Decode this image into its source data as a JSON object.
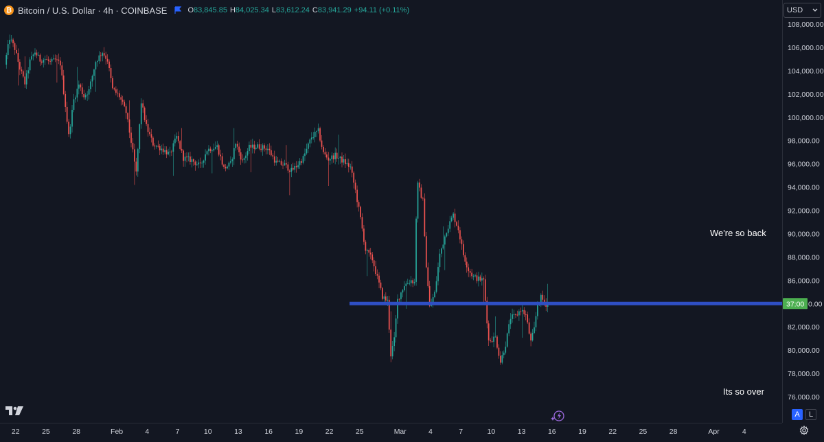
{
  "header": {
    "symbol_title": "Bitcoin / U.S. Dollar · 4h · COINBASE",
    "logo_letter": "₿",
    "ohlc": {
      "o_label": "O",
      "o_value": "83,845.85",
      "h_label": "H",
      "h_value": "84,025.34",
      "l_label": "L",
      "l_value": "83,612.24",
      "c_label": "C",
      "c_value": "83,941.29",
      "change": "+94.11 (+0.11%)"
    }
  },
  "currency": {
    "label": "USD"
  },
  "buttons": {
    "auto_label": "A",
    "log_label": "L"
  },
  "annotations": {
    "top_text": "We're so back",
    "bottom_text": "Its so over"
  },
  "price_badge": {
    "text": "37:00",
    "price": 84000
  },
  "colors": {
    "background": "#131722",
    "up": "#26a69a",
    "down": "#ef5350",
    "hline": "#2f4fc4",
    "badge": "#4caf50",
    "axis_text": "#d1d4dc"
  },
  "chart_data": {
    "type": "candlestick",
    "title": "Bitcoin / U.S. Dollar · 4h · COINBASE",
    "ylim": [
      74500,
      109500
    ],
    "y_ticks": [
      76000,
      78000,
      80000,
      82000,
      84000,
      86000,
      88000,
      90000,
      92000,
      94000,
      96000,
      98000,
      100000,
      102000,
      104000,
      106000,
      108000
    ],
    "y_tick_labels": [
      "76,000.00",
      "78,000.00",
      "80,000.00",
      "82,000.00",
      "84,000.00",
      "86,000.00",
      "88,000.00",
      "90,000.00",
      "92,000.00",
      "94,000.00",
      "96,000.00",
      "98,000.00",
      "100,000.00",
      "102,000.00",
      "104,000.00",
      "106,000.00",
      "108,000.00"
    ],
    "x_range": [
      "2025-01-21",
      "2025-04-07"
    ],
    "x_ticks": [
      {
        "date": "2025-01-22",
        "label": "22"
      },
      {
        "date": "2025-01-25",
        "label": "25"
      },
      {
        "date": "2025-01-28",
        "label": "28"
      },
      {
        "date": "2025-02-01",
        "label": "Feb"
      },
      {
        "date": "2025-02-04",
        "label": "4"
      },
      {
        "date": "2025-02-07",
        "label": "7"
      },
      {
        "date": "2025-02-10",
        "label": "10"
      },
      {
        "date": "2025-02-13",
        "label": "13"
      },
      {
        "date": "2025-02-16",
        "label": "16"
      },
      {
        "date": "2025-02-19",
        "label": "19"
      },
      {
        "date": "2025-02-22",
        "label": "22"
      },
      {
        "date": "2025-02-25",
        "label": "25"
      },
      {
        "date": "2025-03-01",
        "label": "Mar"
      },
      {
        "date": "2025-03-04",
        "label": "4"
      },
      {
        "date": "2025-03-07",
        "label": "7"
      },
      {
        "date": "2025-03-10",
        "label": "10"
      },
      {
        "date": "2025-03-13",
        "label": "13"
      },
      {
        "date": "2025-03-16",
        "label": "16"
      },
      {
        "date": "2025-03-19",
        "label": "19"
      },
      {
        "date": "2025-03-22",
        "label": "22"
      },
      {
        "date": "2025-03-25",
        "label": "25"
      },
      {
        "date": "2025-03-28",
        "label": "28"
      },
      {
        "date": "2025-04-01",
        "label": "Apr"
      },
      {
        "date": "2025-04-04",
        "label": "4"
      }
    ],
    "candle_interval": "4h",
    "first_candle": "2025-01-21T00:00",
    "close_path": [
      [
        "2025-01-21T00:00",
        104500
      ],
      [
        "2025-01-21T12:00",
        106800
      ],
      [
        "2025-01-22T00:00",
        105900
      ],
      [
        "2025-01-22T12:00",
        104200
      ],
      [
        "2025-01-23T00:00",
        102900
      ],
      [
        "2025-01-23T12:00",
        104800
      ],
      [
        "2025-01-24T00:00",
        105600
      ],
      [
        "2025-01-24T12:00",
        104900
      ],
      [
        "2025-01-25T00:00",
        105000
      ],
      [
        "2025-01-25T12:00",
        104700
      ],
      [
        "2025-01-26T00:00",
        104900
      ],
      [
        "2025-01-26T12:00",
        104600
      ],
      [
        "2025-01-27T00:00",
        101000
      ],
      [
        "2025-01-27T08:00",
        98400
      ],
      [
        "2025-01-27T20:00",
        101500
      ],
      [
        "2025-01-28T08:00",
        102800
      ],
      [
        "2025-01-28T20:00",
        101800
      ],
      [
        "2025-01-29T08:00",
        102300
      ],
      [
        "2025-01-30T00:00",
        104800
      ],
      [
        "2025-01-30T16:00",
        105600
      ],
      [
        "2025-01-31T04:00",
        104900
      ],
      [
        "2025-01-31T16:00",
        102400
      ],
      [
        "2025-02-01T08:00",
        101800
      ],
      [
        "2025-02-02T00:00",
        100400
      ],
      [
        "2025-02-02T12:00",
        97900
      ],
      [
        "2025-02-03T00:00",
        95200
      ],
      [
        "2025-02-03T12:00",
        101300
      ],
      [
        "2025-02-04T00:00",
        99200
      ],
      [
        "2025-02-04T16:00",
        97700
      ],
      [
        "2025-02-05T12:00",
        97300
      ],
      [
        "2025-02-06T08:00",
        96800
      ],
      [
        "2025-02-07T00:00",
        98300
      ],
      [
        "2025-02-07T16:00",
        96500
      ],
      [
        "2025-02-08T12:00",
        96300
      ],
      [
        "2025-02-09T08:00",
        95800
      ],
      [
        "2025-02-10T00:00",
        97200
      ],
      [
        "2025-02-11T00:00",
        97500
      ],
      [
        "2025-02-11T16:00",
        95600
      ],
      [
        "2025-02-12T08:00",
        96000
      ],
      [
        "2025-02-12T20:00",
        97800
      ],
      [
        "2025-02-13T12:00",
        96200
      ],
      [
        "2025-02-14T04:00",
        97400
      ],
      [
        "2025-02-15T00:00",
        97500
      ],
      [
        "2025-02-16T00:00",
        97300
      ],
      [
        "2025-02-16T20:00",
        96100
      ],
      [
        "2025-02-17T16:00",
        95900
      ],
      [
        "2025-02-18T08:00",
        95400
      ],
      [
        "2025-02-18T20:00",
        95800
      ],
      [
        "2025-02-19T12:00",
        96500
      ],
      [
        "2025-02-20T08:00",
        98300
      ],
      [
        "2025-02-21T00:00",
        98800
      ],
      [
        "2025-02-21T12:00",
        96900
      ],
      [
        "2025-02-22T00:00",
        96400
      ],
      [
        "2025-02-22T16:00",
        96700
      ],
      [
        "2025-02-23T12:00",
        96200
      ],
      [
        "2025-02-24T04:00",
        95700
      ],
      [
        "2025-02-24T16:00",
        93700
      ],
      [
        "2025-02-25T04:00",
        91300
      ],
      [
        "2025-02-25T16:00",
        88600
      ],
      [
        "2025-02-26T08:00",
        87800
      ],
      [
        "2025-02-26T20:00",
        86200
      ],
      [
        "2025-02-27T08:00",
        84600
      ],
      [
        "2025-02-27T20:00",
        84200
      ],
      [
        "2025-02-28T04:00",
        79600
      ],
      [
        "2025-02-28T12:00",
        80900
      ],
      [
        "2025-02-28T20:00",
        84300
      ],
      [
        "2025-03-01T12:00",
        85600
      ],
      [
        "2025-03-02T04:00",
        86000
      ],
      [
        "2025-03-02T12:00",
        85800
      ],
      [
        "2025-03-02T16:00",
        91400
      ],
      [
        "2025-03-02T20:00",
        94200
      ],
      [
        "2025-03-03T08:00",
        92800
      ],
      [
        "2025-03-03T16:00",
        87200
      ],
      [
        "2025-03-04T00:00",
        83700
      ],
      [
        "2025-03-04T12:00",
        84900
      ],
      [
        "2025-03-05T00:00",
        88200
      ],
      [
        "2025-03-05T16:00",
        90300
      ],
      [
        "2025-03-06T08:00",
        91600
      ],
      [
        "2025-03-06T20:00",
        90400
      ],
      [
        "2025-03-07T08:00",
        88200
      ],
      [
        "2025-03-07T20:00",
        86900
      ],
      [
        "2025-03-08T08:00",
        86300
      ],
      [
        "2025-03-08T20:00",
        86100
      ],
      [
        "2025-03-09T08:00",
        86000
      ],
      [
        "2025-03-09T20:00",
        80800
      ],
      [
        "2025-03-10T12:00",
        81100
      ],
      [
        "2025-03-11T00:00",
        79000
      ],
      [
        "2025-03-11T12:00",
        80500
      ],
      [
        "2025-03-12T00:00",
        82800
      ],
      [
        "2025-03-12T12:00",
        82900
      ],
      [
        "2025-03-13T00:00",
        83500
      ],
      [
        "2025-03-13T12:00",
        83000
      ],
      [
        "2025-03-14T00:00",
        80700
      ],
      [
        "2025-03-14T08:00",
        81800
      ],
      [
        "2025-03-14T16:00",
        84000
      ],
      [
        "2025-03-15T00:00",
        84500
      ],
      [
        "2025-03-15T12:00",
        83941
      ]
    ],
    "last_close": 83941.29,
    "horizontal_line": {
      "price": 84000,
      "from": "2025-02-24"
    }
  }
}
